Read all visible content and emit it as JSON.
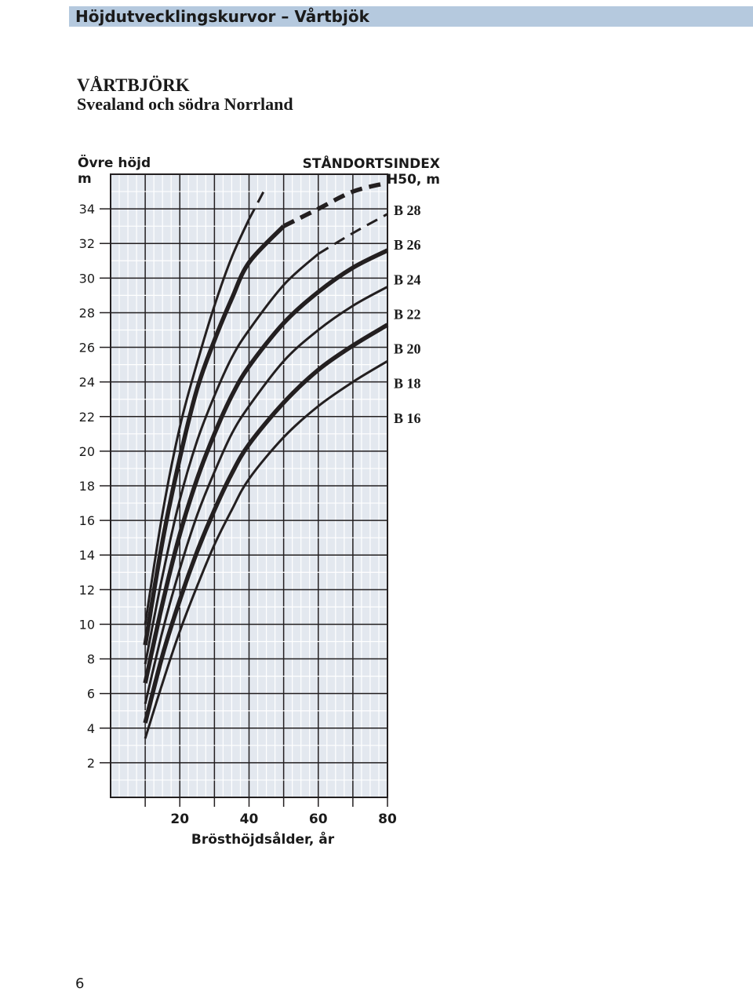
{
  "header": {
    "title": "Höjdutvecklingskurvor – Vårtbjök"
  },
  "species": "VÅRTBJÖRK",
  "region": "Svealand och södra Norrland",
  "page_number": "6",
  "colors": {
    "header_bar": "#b5c9de",
    "grid_bg": "#e3e8ef",
    "curve": "#231f20"
  },
  "chart_data": {
    "type": "line",
    "title": "",
    "ylabel": "Övre höjd",
    "yunit": "m",
    "xlabel": "Brösthöjdsålder, år",
    "index_label": "STÅNDORTSINDEX",
    "index_unit": "H50, m",
    "xlim": [
      0,
      80
    ],
    "ylim": [
      0,
      36
    ],
    "xticks": [
      20,
      40,
      60,
      80
    ],
    "yticks": [
      2,
      4,
      6,
      8,
      10,
      12,
      14,
      16,
      18,
      20,
      22,
      24,
      26,
      28,
      30,
      32,
      34
    ],
    "grid": true,
    "series": [
      {
        "name": "B 28",
        "label_y": 34,
        "weight": "thin",
        "x": [
          10,
          15,
          20,
          25,
          30,
          35,
          40,
          45
        ],
        "y": [
          10,
          16.4,
          21.4,
          25.1,
          28.4,
          31.2,
          33.4,
          35.3
        ],
        "dashed_from": 40
      },
      {
        "name": "B 26",
        "label_y": 32,
        "weight": "thick",
        "x": [
          10,
          15,
          20,
          25,
          30,
          35,
          40,
          50,
          60,
          70,
          80
        ],
        "y": [
          8.8,
          14.8,
          19.6,
          23.6,
          26.4,
          28.8,
          30.9,
          33.0,
          34.0,
          35.0,
          35.5
        ],
        "dashed_from": 50
      },
      {
        "name": "B 24",
        "label_y": 30,
        "weight": "thin",
        "x": [
          10,
          15,
          20,
          25,
          30,
          35,
          40,
          50,
          60,
          70,
          80
        ],
        "y": [
          7.7,
          12.8,
          17.2,
          20.6,
          23.2,
          25.4,
          27.0,
          29.6,
          31.4,
          32.6,
          33.7
        ],
        "dashed_from": 60
      },
      {
        "name": "B 22",
        "label_y": 28,
        "weight": "thick",
        "x": [
          10,
          15,
          20,
          25,
          30,
          35,
          40,
          50,
          60,
          70,
          80
        ],
        "y": [
          6.6,
          11.2,
          15.2,
          18.4,
          21.0,
          23.2,
          24.9,
          27.4,
          29.2,
          30.6,
          31.6
        ]
      },
      {
        "name": "B 20",
        "label_y": 26,
        "weight": "thin",
        "x": [
          10,
          15,
          20,
          25,
          30,
          35,
          40,
          50,
          60,
          70,
          80
        ],
        "y": [
          5.4,
          9.6,
          13.2,
          16.3,
          18.8,
          21.0,
          22.6,
          25.2,
          27.0,
          28.4,
          29.5
        ]
      },
      {
        "name": "B 18",
        "label_y": 24,
        "weight": "thick",
        "x": [
          10,
          15,
          20,
          25,
          30,
          35,
          40,
          50,
          60,
          70,
          80
        ],
        "y": [
          4.3,
          8.2,
          11.4,
          14.2,
          16.6,
          18.7,
          20.4,
          22.8,
          24.7,
          26.1,
          27.3
        ]
      },
      {
        "name": "B 16",
        "label_y": 22,
        "weight": "thin",
        "x": [
          10,
          15,
          20,
          25,
          30,
          35,
          40,
          50,
          60,
          70,
          80
        ],
        "y": [
          3.4,
          6.6,
          9.6,
          12.2,
          14.6,
          16.6,
          18.4,
          20.8,
          22.6,
          24.0,
          25.2
        ]
      }
    ]
  }
}
